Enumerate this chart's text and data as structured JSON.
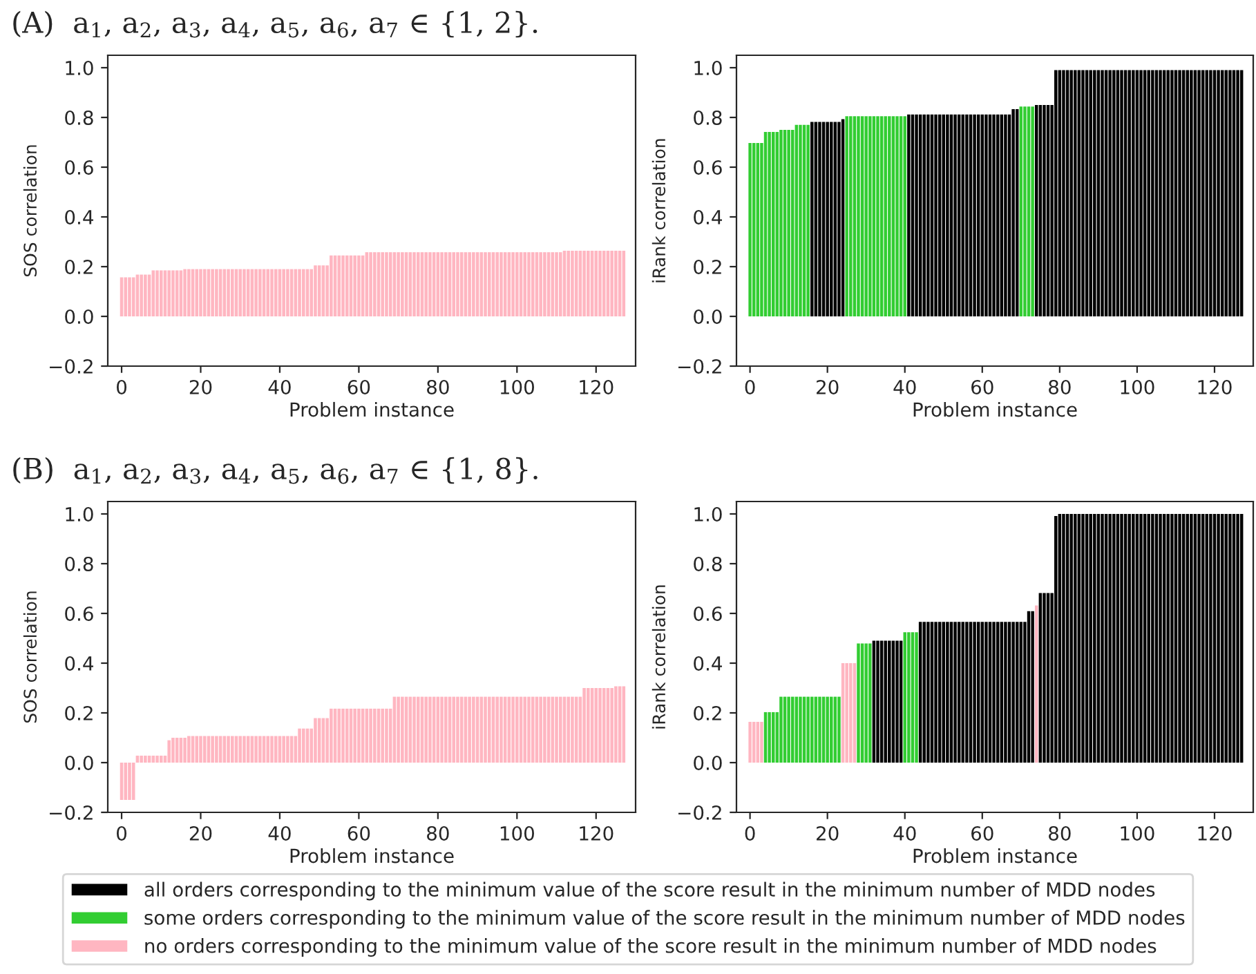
{
  "chart_data": [
    {
      "type": "bar",
      "title": "(A)  a$_{1}$, a$_{2}$, a$_{3}$, a$_{4}$, a$_{5}$, a$_{6}$, a$_{7}$ ∈ {1, 2}.",
      "xlabel": "Problem instance",
      "ylabel": "SOS correlation",
      "x": [
        0,
        1,
        2,
        3,
        4,
        5,
        6,
        7,
        8,
        9,
        10,
        11,
        12,
        13,
        14,
        15,
        16,
        17,
        18,
        19,
        20,
        21,
        22,
        23,
        24,
        25,
        26,
        27,
        28,
        29,
        30,
        31,
        32,
        33,
        34,
        35,
        36,
        37,
        38,
        39,
        40,
        41,
        42,
        43,
        44,
        45,
        46,
        47,
        48,
        49,
        50,
        51,
        52,
        53,
        54,
        55,
        56,
        57,
        58,
        59,
        60,
        61,
        62,
        63,
        64,
        65,
        66,
        67,
        68,
        69,
        70,
        71,
        72,
        73,
        74,
        75,
        76,
        77,
        78,
        79,
        80,
        81,
        82,
        83,
        84,
        85,
        86,
        87,
        88,
        89,
        90,
        91,
        92,
        93,
        94,
        95,
        96,
        97,
        98,
        99,
        100,
        101,
        102,
        103,
        104,
        105,
        106,
        107,
        108,
        109,
        110,
        111,
        112,
        113,
        114,
        115,
        116,
        117,
        118,
        119,
        120,
        121,
        122,
        123,
        124,
        125,
        126,
        127
      ],
      "xlim": [
        -3.5,
        130
      ],
      "xticks": [
        0,
        20,
        40,
        60,
        80,
        100,
        120
      ],
      "ylim": [
        -0.2,
        1.05
      ],
      "yticks": [
        {
          "value": -0.2,
          "label": "−0.2"
        },
        {
          "value": 0,
          "label": "0.0"
        },
        0.2,
        0.4,
        0.6,
        0.8,
        {
          "value": 1,
          "label": "1.0"
        }
      ],
      "series": [
        {
          "color": "#ffb6c1",
          "values": [
            0.157,
            0.157,
            0.157,
            0.157,
            0.168,
            0.168,
            0.168,
            0.168,
            0.185,
            0.185,
            0.185,
            0.185,
            0.185,
            0.185,
            0.185,
            0.185,
            0.19,
            0.19,
            0.19,
            0.19,
            0.19,
            0.19,
            0.19,
            0.19,
            0.19,
            0.19,
            0.19,
            0.19,
            0.19,
            0.19,
            0.19,
            0.19,
            0.19,
            0.19,
            0.19,
            0.19,
            0.19,
            0.19,
            0.19,
            0.19,
            0.19,
            0.19,
            0.19,
            0.19,
            0.19,
            0.19,
            0.19,
            0.19,
            0.19,
            0.205,
            0.205,
            0.205,
            0.205,
            0.245,
            0.245,
            0.245,
            0.245,
            0.245,
            0.245,
            0.245,
            0.245,
            0.245,
            0.258,
            0.258,
            0.258,
            0.258,
            0.258,
            0.258,
            0.258,
            0.258,
            0.258,
            0.258,
            0.258,
            0.258,
            0.258,
            0.258,
            0.258,
            0.258,
            0.258,
            0.258,
            0.258,
            0.258,
            0.258,
            0.258,
            0.258,
            0.258,
            0.258,
            0.258,
            0.258,
            0.258,
            0.258,
            0.258,
            0.258,
            0.258,
            0.258,
            0.258,
            0.258,
            0.258,
            0.258,
            0.258,
            0.258,
            0.258,
            0.258,
            0.258,
            0.258,
            0.258,
            0.258,
            0.258,
            0.258,
            0.258,
            0.258,
            0.258,
            0.264,
            0.264,
            0.264,
            0.264,
            0.264,
            0.264,
            0.264,
            0.264,
            0.264,
            0.264,
            0.264,
            0.264,
            0.264,
            0.264,
            0.264,
            0.264
          ]
        }
      ]
    },
    {
      "type": "bar",
      "xlabel": "Problem instance",
      "ylabel": "iRank correlation",
      "x": [
        0,
        1,
        2,
        3,
        4,
        5,
        6,
        7,
        8,
        9,
        10,
        11,
        12,
        13,
        14,
        15,
        16,
        17,
        18,
        19,
        20,
        21,
        22,
        23,
        24,
        25,
        26,
        27,
        28,
        29,
        30,
        31,
        32,
        33,
        34,
        35,
        36,
        37,
        38,
        39,
        40,
        41,
        42,
        43,
        44,
        45,
        46,
        47,
        48,
        49,
        50,
        51,
        52,
        53,
        54,
        55,
        56,
        57,
        58,
        59,
        60,
        61,
        62,
        63,
        64,
        65,
        66,
        67,
        68,
        69,
        70,
        71,
        72,
        73,
        74,
        75,
        76,
        77,
        78,
        79,
        80,
        81,
        82,
        83,
        84,
        85,
        86,
        87,
        88,
        89,
        90,
        91,
        92,
        93,
        94,
        95,
        96,
        97,
        98,
        99,
        100,
        101,
        102,
        103,
        104,
        105,
        106,
        107,
        108,
        109,
        110,
        111,
        112,
        113,
        114,
        115,
        116,
        117,
        118,
        119,
        120,
        121,
        122,
        123,
        124,
        125,
        126,
        127
      ],
      "xlim": [
        -3.5,
        130
      ],
      "xticks": [
        0,
        20,
        40,
        60,
        80,
        100,
        120
      ],
      "ylim": [
        -0.2,
        1.05
      ],
      "yticks": [
        {
          "value": -0.2,
          "label": "−0.2"
        },
        {
          "value": 0,
          "label": "0.0"
        },
        0.2,
        0.4,
        0.6,
        0.8,
        {
          "value": 1,
          "label": "1.0"
        }
      ],
      "series": [
        {
          "color": "#000000",
          "values": [
            null,
            null,
            null,
            null,
            null,
            null,
            null,
            null,
            null,
            null,
            null,
            null,
            null,
            null,
            null,
            null,
            0.782,
            0.782,
            0.782,
            0.782,
            0.782,
            0.782,
            0.782,
            0.782,
            0.793,
            null,
            null,
            null,
            null,
            null,
            null,
            null,
            null,
            null,
            null,
            null,
            null,
            null,
            null,
            null,
            null,
            0.812,
            0.812,
            0.812,
            0.812,
            0.812,
            0.812,
            0.812,
            0.812,
            0.812,
            0.812,
            0.812,
            0.812,
            0.812,
            0.812,
            0.812,
            0.812,
            0.812,
            0.812,
            0.812,
            0.812,
            0.812,
            0.812,
            0.812,
            0.812,
            0.812,
            0.812,
            0.812,
            0.833,
            0.833,
            null,
            null,
            null,
            null,
            0.85,
            0.85,
            0.85,
            0.85,
            0.85,
            0.99,
            0.99,
            0.99,
            0.99,
            0.99,
            0.99,
            0.99,
            0.99,
            0.99,
            0.99,
            0.99,
            0.99,
            0.99,
            0.99,
            0.99,
            0.99,
            0.99,
            0.99,
            0.99,
            0.99,
            0.99,
            0.99,
            0.99,
            0.99,
            0.99,
            0.99,
            0.99,
            0.99,
            0.99,
            0.99,
            0.99,
            0.99,
            0.99,
            0.99,
            0.99,
            0.99,
            0.99,
            0.99,
            0.99,
            0.99,
            0.99,
            0.99,
            0.99,
            0.99,
            0.99,
            0.99,
            0.99,
            0.99,
            0.99
          ]
        },
        {
          "color": "#32cd32",
          "values": [
            0.697,
            0.697,
            0.697,
            0.697,
            0.742,
            0.742,
            0.742,
            0.742,
            0.75,
            0.75,
            0.75,
            0.75,
            0.77,
            0.77,
            0.77,
            0.77,
            null,
            null,
            null,
            null,
            null,
            null,
            null,
            null,
            null,
            0.805,
            0.805,
            0.805,
            0.805,
            0.805,
            0.805,
            0.805,
            0.805,
            0.805,
            0.805,
            0.805,
            0.805,
            0.805,
            0.805,
            0.805,
            0.805,
            null,
            null,
            null,
            null,
            null,
            null,
            null,
            null,
            null,
            null,
            null,
            null,
            null,
            null,
            null,
            null,
            null,
            null,
            null,
            null,
            null,
            null,
            null,
            null,
            null,
            null,
            null,
            null,
            null,
            0.844,
            0.844,
            0.844,
            0.844,
            null,
            null,
            null,
            null,
            null,
            null,
            null,
            null,
            null,
            null,
            null,
            null,
            null,
            null,
            null,
            null,
            null,
            null,
            null,
            null,
            null,
            null,
            null,
            null,
            null,
            null,
            null,
            null,
            null,
            null,
            null,
            null,
            null,
            null,
            null,
            null,
            null,
            null,
            null,
            null,
            null,
            null,
            null,
            null,
            null,
            null,
            null,
            null,
            null,
            null,
            null,
            null,
            null,
            null
          ]
        }
      ]
    },
    {
      "type": "bar",
      "title": "(B)  a$_{1}$, a$_{2}$, a$_{3}$, a$_{4}$, a$_{5}$, a$_{6}$, a$_{7}$ ∈ {1, 8}.",
      "xlabel": "Problem instance",
      "ylabel": "SOS correlation",
      "x": [
        0,
        1,
        2,
        3,
        4,
        5,
        6,
        7,
        8,
        9,
        10,
        11,
        12,
        13,
        14,
        15,
        16,
        17,
        18,
        19,
        20,
        21,
        22,
        23,
        24,
        25,
        26,
        27,
        28,
        29,
        30,
        31,
        32,
        33,
        34,
        35,
        36,
        37,
        38,
        39,
        40,
        41,
        42,
        43,
        44,
        45,
        46,
        47,
        48,
        49,
        50,
        51,
        52,
        53,
        54,
        55,
        56,
        57,
        58,
        59,
        60,
        61,
        62,
        63,
        64,
        65,
        66,
        67,
        68,
        69,
        70,
        71,
        72,
        73,
        74,
        75,
        76,
        77,
        78,
        79,
        80,
        81,
        82,
        83,
        84,
        85,
        86,
        87,
        88,
        89,
        90,
        91,
        92,
        93,
        94,
        95,
        96,
        97,
        98,
        99,
        100,
        101,
        102,
        103,
        104,
        105,
        106,
        107,
        108,
        109,
        110,
        111,
        112,
        113,
        114,
        115,
        116,
        117,
        118,
        119,
        120,
        121,
        122,
        123,
        124,
        125,
        126,
        127
      ],
      "xlim": [
        -3.5,
        130
      ],
      "xticks": [
        0,
        20,
        40,
        60,
        80,
        100,
        120
      ],
      "ylim": [
        -0.2,
        1.05
      ],
      "yticks": [
        {
          "value": -0.2,
          "label": "−0.2"
        },
        {
          "value": 0,
          "label": "0.0"
        },
        0.2,
        0.4,
        0.6,
        0.8,
        {
          "value": 1,
          "label": "1.0"
        }
      ],
      "series": [
        {
          "color": "#ffb6c1",
          "values": [
            -0.15,
            -0.15,
            -0.15,
            -0.15,
            0.028,
            0.028,
            0.028,
            0.028,
            0.028,
            0.028,
            0.028,
            0.028,
            0.09,
            0.1,
            0.1,
            0.1,
            0.1,
            0.107,
            0.107,
            0.107,
            0.107,
            0.107,
            0.107,
            0.107,
            0.107,
            0.107,
            0.107,
            0.107,
            0.107,
            0.107,
            0.107,
            0.107,
            0.107,
            0.107,
            0.107,
            0.107,
            0.107,
            0.107,
            0.107,
            0.107,
            0.107,
            0.107,
            0.107,
            0.107,
            0.107,
            0.137,
            0.137,
            0.137,
            0.137,
            0.179,
            0.179,
            0.179,
            0.179,
            0.217,
            0.217,
            0.217,
            0.217,
            0.217,
            0.217,
            0.217,
            0.217,
            0.217,
            0.217,
            0.217,
            0.217,
            0.217,
            0.217,
            0.217,
            0.217,
            0.265,
            0.265,
            0.265,
            0.265,
            0.265,
            0.265,
            0.265,
            0.265,
            0.265,
            0.265,
            0.265,
            0.265,
            0.265,
            0.265,
            0.265,
            0.265,
            0.265,
            0.265,
            0.265,
            0.265,
            0.265,
            0.265,
            0.265,
            0.265,
            0.265,
            0.265,
            0.265,
            0.265,
            0.265,
            0.265,
            0.265,
            0.265,
            0.265,
            0.265,
            0.265,
            0.265,
            0.265,
            0.265,
            0.265,
            0.265,
            0.265,
            0.265,
            0.265,
            0.265,
            0.265,
            0.265,
            0.265,
            0.265,
            0.3,
            0.3,
            0.3,
            0.3,
            0.3,
            0.3,
            0.3,
            0.3,
            0.307,
            0.307,
            0.307
          ]
        }
      ]
    },
    {
      "type": "bar",
      "xlabel": "Problem instance",
      "ylabel": "iRank correlation",
      "legend": "bottom",
      "x": [
        0,
        1,
        2,
        3,
        4,
        5,
        6,
        7,
        8,
        9,
        10,
        11,
        12,
        13,
        14,
        15,
        16,
        17,
        18,
        19,
        20,
        21,
        22,
        23,
        24,
        25,
        26,
        27,
        28,
        29,
        30,
        31,
        32,
        33,
        34,
        35,
        36,
        37,
        38,
        39,
        40,
        41,
        42,
        43,
        44,
        45,
        46,
        47,
        48,
        49,
        50,
        51,
        52,
        53,
        54,
        55,
        56,
        57,
        58,
        59,
        60,
        61,
        62,
        63,
        64,
        65,
        66,
        67,
        68,
        69,
        70,
        71,
        72,
        73,
        74,
        75,
        76,
        77,
        78,
        79,
        80,
        81,
        82,
        83,
        84,
        85,
        86,
        87,
        88,
        89,
        90,
        91,
        92,
        93,
        94,
        95,
        96,
        97,
        98,
        99,
        100,
        101,
        102,
        103,
        104,
        105,
        106,
        107,
        108,
        109,
        110,
        111,
        112,
        113,
        114,
        115,
        116,
        117,
        118,
        119,
        120,
        121,
        122,
        123,
        124,
        125,
        126,
        127
      ],
      "xlim": [
        -3.5,
        130
      ],
      "xticks": [
        0,
        20,
        40,
        60,
        80,
        100,
        120
      ],
      "ylim": [
        -0.2,
        1.05
      ],
      "yticks": [
        {
          "value": -0.2,
          "label": "−0.2"
        },
        {
          "value": 0,
          "label": "0.0"
        },
        0.2,
        0.4,
        0.6,
        0.8,
        {
          "value": 1,
          "label": "1.0"
        }
      ],
      "series": [
        {
          "name": "all orders corresponding to the minimum value of the score result in the minimum number of MDD nodes",
          "color": "#000000",
          "values": [
            null,
            null,
            null,
            null,
            null,
            null,
            null,
            null,
            null,
            null,
            null,
            null,
            null,
            null,
            null,
            null,
            null,
            null,
            null,
            null,
            null,
            null,
            null,
            null,
            null,
            null,
            null,
            null,
            null,
            null,
            null,
            null,
            0.49,
            0.49,
            0.49,
            0.49,
            0.49,
            0.49,
            0.49,
            0.49,
            null,
            null,
            null,
            null,
            0.566,
            0.566,
            0.566,
            0.566,
            0.566,
            0.566,
            0.566,
            0.566,
            0.566,
            0.566,
            0.566,
            0.566,
            0.566,
            0.566,
            0.566,
            0.566,
            0.566,
            0.566,
            0.566,
            0.566,
            0.566,
            0.566,
            0.566,
            0.566,
            0.566,
            0.566,
            0.566,
            0.566,
            0.609,
            0.609,
            null,
            0.682,
            0.682,
            0.682,
            0.682,
            0.992,
            1.0,
            1.0,
            1.0,
            1.0,
            1.0,
            1.0,
            1.0,
            1.0,
            1.0,
            1.0,
            1.0,
            1.0,
            1.0,
            1.0,
            1.0,
            1.0,
            1.0,
            1.0,
            1.0,
            1.0,
            1.0,
            1.0,
            1.0,
            1.0,
            1.0,
            1.0,
            1.0,
            1.0,
            1.0,
            1.0,
            1.0,
            1.0,
            1.0,
            1.0,
            1.0,
            1.0,
            1.0,
            1.0,
            1.0,
            1.0,
            1.0,
            1.0,
            1.0,
            1.0,
            1.0,
            1.0,
            1.0,
            1.0
          ]
        },
        {
          "name": "some orders corresponding to the minimum value of the score result in the minimum number of MDD nodes",
          "color": "#32cd32",
          "values": [
            null,
            null,
            null,
            null,
            0.203,
            0.203,
            0.203,
            0.203,
            0.265,
            0.265,
            0.265,
            0.265,
            0.265,
            0.265,
            0.265,
            0.265,
            0.265,
            0.265,
            0.265,
            0.265,
            0.265,
            0.265,
            0.265,
            0.265,
            null,
            null,
            null,
            null,
            0.479,
            0.479,
            0.479,
            0.479,
            null,
            null,
            null,
            null,
            null,
            null,
            null,
            null,
            0.524,
            0.524,
            0.524,
            0.524,
            null,
            null,
            null,
            null,
            null,
            null,
            null,
            null,
            null,
            null,
            null,
            null,
            null,
            null,
            null,
            null,
            null,
            null,
            null,
            null,
            null,
            null,
            null,
            null,
            null,
            null,
            null,
            null,
            null,
            null,
            null,
            null,
            null,
            null,
            null,
            null,
            null,
            null,
            null,
            null,
            null,
            null,
            null,
            null,
            null,
            null,
            null,
            null,
            null,
            null,
            null,
            null,
            null,
            null,
            null,
            null,
            null,
            null,
            null,
            null,
            null,
            null,
            null,
            null,
            null,
            null,
            null,
            null,
            null,
            null,
            null,
            null,
            null,
            null,
            null,
            null,
            null,
            null,
            null,
            null,
            null,
            null,
            null,
            null
          ]
        },
        {
          "name": "no orders corresponding to the minimum value of the score result in the minimum number of MDD nodes",
          "color": "#ffb6c1",
          "values": [
            0.164,
            0.164,
            0.164,
            0.164,
            null,
            null,
            null,
            null,
            null,
            null,
            null,
            null,
            null,
            null,
            null,
            null,
            null,
            null,
            null,
            null,
            null,
            null,
            null,
            null,
            0.4,
            0.4,
            0.4,
            0.4,
            null,
            null,
            null,
            null,
            null,
            null,
            null,
            null,
            null,
            null,
            null,
            null,
            null,
            null,
            null,
            null,
            null,
            null,
            null,
            null,
            null,
            null,
            null,
            null,
            null,
            null,
            null,
            null,
            null,
            null,
            null,
            null,
            null,
            null,
            null,
            null,
            null,
            null,
            null,
            null,
            null,
            null,
            null,
            null,
            null,
            null,
            0.632,
            null,
            null,
            null,
            null,
            null,
            null,
            null,
            null,
            null,
            null,
            null,
            null,
            null,
            null,
            null,
            null,
            null,
            null,
            null,
            null,
            null,
            null,
            null,
            null,
            null,
            null,
            null,
            null,
            null,
            null,
            null,
            null,
            null,
            null,
            null,
            null,
            null,
            null,
            null,
            null,
            null,
            null,
            null,
            null,
            null,
            null,
            null,
            null,
            null,
            null,
            null,
            null,
            null
          ]
        }
      ]
    }
  ]
}
